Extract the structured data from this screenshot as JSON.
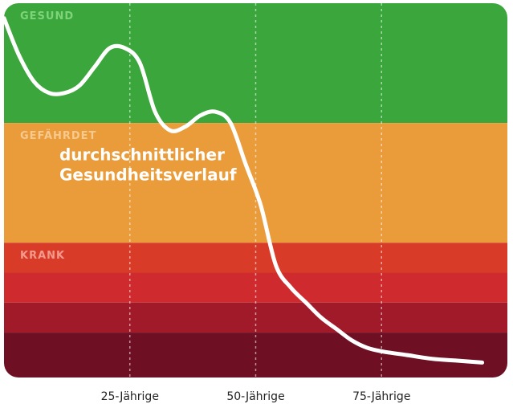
{
  "chart_data": {
    "type": "line",
    "title": "",
    "xlabel": "",
    "ylabel": "",
    "xlim": [
      0,
      100
    ],
    "ylim": [
      0,
      100
    ],
    "grid": "vertical-dashed",
    "zones": [
      {
        "name": "gesund",
        "label": "GESUND",
        "from": 68,
        "to": 100,
        "color": "#3aa63b",
        "label_color": "#7fd47a"
      },
      {
        "name": "gefaehrdet",
        "label": "GEFÄHRDET",
        "from": 36,
        "to": 68,
        "color": "#ea9b3a",
        "label_color": "#f6c98f"
      },
      {
        "name": "krank-1",
        "label": "KRANK",
        "from": 28,
        "to": 36,
        "color": "#d83c28",
        "label_color": "#f2998c"
      },
      {
        "name": "krank-2",
        "label": "",
        "from": 20,
        "to": 28,
        "color": "#cf2a2d",
        "label_color": ""
      },
      {
        "name": "krank-3",
        "label": "",
        "from": 12,
        "to": 20,
        "color": "#a11a2a",
        "label_color": ""
      },
      {
        "name": "krank-4",
        "label": "",
        "from": 0,
        "to": 12,
        "color": "#6f0f23",
        "label_color": ""
      }
    ],
    "xticks": [
      {
        "value": 25,
        "label": "25-Jährige"
      },
      {
        "value": 50,
        "label": "50-Jährige"
      },
      {
        "value": 75,
        "label": "75-Jährige"
      }
    ],
    "annotation": {
      "lines": [
        "durchschnittlicher",
        "Gesundheitsverlauf"
      ],
      "x": 11,
      "y": 58
    },
    "series": [
      {
        "color": "#ffffff",
        "x": [
          0,
          3,
          6,
          9,
          12,
          15,
          18,
          21,
          24,
          27,
          30,
          33,
          36,
          39,
          42,
          45,
          48,
          51,
          54,
          57,
          60,
          63,
          66,
          69,
          72,
          75,
          80,
          85,
          90,
          95
        ],
        "y": [
          96,
          86,
          79,
          76,
          76,
          78,
          83,
          88,
          88,
          84,
          71,
          66,
          67,
          70,
          71,
          68,
          57,
          46,
          30,
          24,
          20,
          16,
          13,
          10,
          8,
          7,
          6,
          5,
          4.5,
          4
        ]
      }
    ]
  }
}
